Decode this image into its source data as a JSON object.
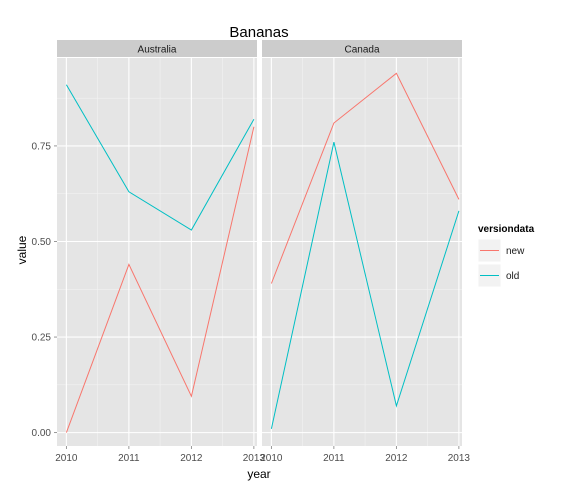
{
  "chart_data": {
    "type": "line",
    "title": "Bananas",
    "xlabel": "year",
    "ylabel": "value",
    "x": [
      2010,
      2011,
      2012,
      2013
    ],
    "x_tick_labels": [
      "2010",
      "2011",
      "2012",
      "2013"
    ],
    "ylim": [
      -0.035,
      0.98
    ],
    "y_ticks": [
      0.0,
      0.25,
      0.5,
      0.75
    ],
    "y_tick_labels": [
      "0.00",
      "0.25",
      "0.50",
      "0.75"
    ],
    "grid": true,
    "legend_position": "right",
    "legend_title": "versiondata",
    "facets": [
      {
        "label": "Australia",
        "series": [
          {
            "name": "new",
            "color": "#F8766D",
            "values": [
              0.0,
              0.44,
              0.095,
              0.8
            ]
          },
          {
            "name": "old",
            "color": "#00BFC4",
            "values": [
              0.91,
              0.63,
              0.53,
              0.82
            ]
          }
        ]
      },
      {
        "label": "Canada",
        "series": [
          {
            "name": "new",
            "color": "#F8766D",
            "values": [
              0.39,
              0.81,
              0.94,
              0.61
            ]
          },
          {
            "name": "old",
            "color": "#00BFC4",
            "values": [
              0.01,
              0.76,
              0.07,
              0.58
            ]
          }
        ]
      }
    ]
  }
}
